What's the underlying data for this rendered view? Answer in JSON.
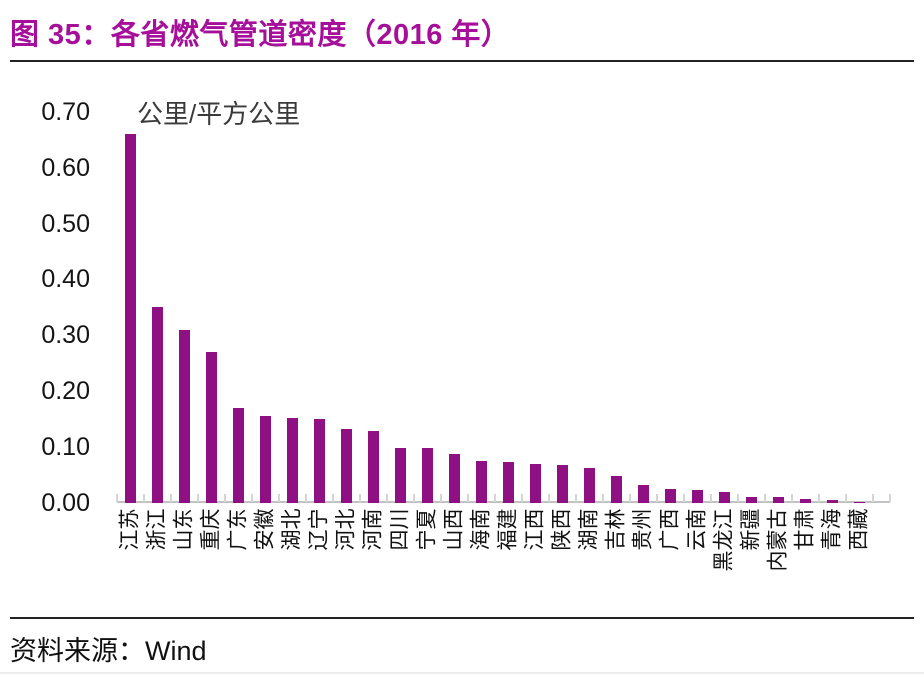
{
  "header": {
    "title": "图 35：各省燃气管道密度（2016 年）"
  },
  "footer": {
    "source_label": "资料来源：",
    "source_value": "Wind"
  },
  "colors": {
    "bar": "#8E1082",
    "title": "#A50F99",
    "axis_line": "#C2C2C2",
    "tick": "#D5D5D5",
    "label_text": "#141414",
    "unit_text": "#3A3A3A"
  },
  "chart_data": {
    "type": "bar",
    "title": "各省燃气管道密度（2016 年）",
    "unit_label": "公里/平方公里",
    "xlabel": "",
    "ylabel": "公里/平方公里",
    "ylim": [
      0,
      0.7
    ],
    "ytick_labels": [
      "0.00",
      "0.10",
      "0.20",
      "0.30",
      "0.40",
      "0.50",
      "0.60",
      "0.70"
    ],
    "grid": false,
    "legend": "none",
    "categories": [
      "江苏",
      "浙江",
      "山东",
      "重庆",
      "广东",
      "安徽",
      "湖北",
      "辽宁",
      "河北",
      "河南",
      "四川",
      "宁夏",
      "山西",
      "海南",
      "福建",
      "江西",
      "陕西",
      "湖南",
      "吉林",
      "贵州",
      "广西",
      "云南",
      "黑龙江",
      "新疆",
      "内蒙古",
      "甘肃",
      "青海",
      "西藏"
    ],
    "values": [
      0.66,
      0.35,
      0.31,
      0.27,
      0.17,
      0.155,
      0.152,
      0.15,
      0.132,
      0.128,
      0.099,
      0.098,
      0.088,
      0.075,
      0.073,
      0.07,
      0.068,
      0.062,
      0.049,
      0.032,
      0.025,
      0.024,
      0.02,
      0.01,
      0.01,
      0.008,
      0.006,
      0.001
    ]
  }
}
